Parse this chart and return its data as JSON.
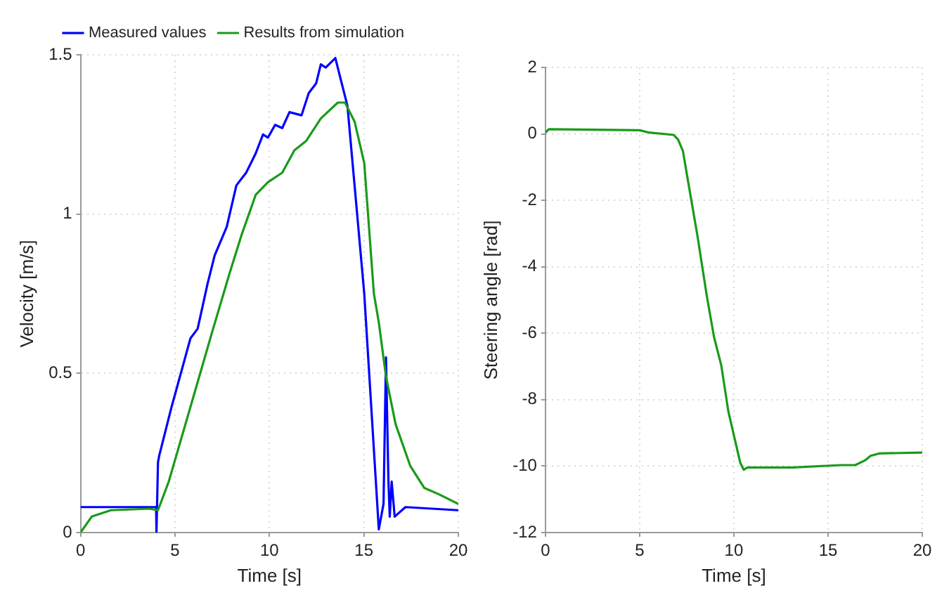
{
  "chart_data": [
    {
      "type": "line",
      "xlabel": "Time [s]",
      "ylabel": "Velocity [m/s]",
      "xlim": [
        0,
        20
      ],
      "ylim": [
        0,
        1.5
      ],
      "xticks": [
        0,
        5,
        10,
        15,
        20
      ],
      "yticks": [
        0,
        0.5,
        1,
        1.5
      ],
      "grid": true,
      "legend": "top",
      "line_style": "solid",
      "marker": "none",
      "series": [
        {
          "name": "Measured values",
          "color": "#0000ff",
          "x": [
            0,
            1,
            2,
            3,
            4,
            4.02,
            4.1,
            4.16,
            4.8,
            5.82,
            6.2,
            6.72,
            7.1,
            7.74,
            8.25,
            8.77,
            9.27,
            9.66,
            9.92,
            10.3,
            10.68,
            11.06,
            11.7,
            12.08,
            12.47,
            12.72,
            12.98,
            13.49,
            13.7,
            14.13,
            15.02,
            15.79,
            16.04,
            16.17,
            16.3,
            16.37,
            16.47,
            16.63,
            17.2,
            20
          ],
          "values": [
            0.08,
            0.08,
            0.08,
            0.08,
            0.08,
            0,
            0.22,
            0.24,
            0.39,
            0.61,
            0.64,
            0.78,
            0.87,
            0.96,
            1.09,
            1.13,
            1.19,
            1.25,
            1.24,
            1.28,
            1.27,
            1.32,
            1.31,
            1.38,
            1.41,
            1.47,
            1.46,
            1.49,
            1.44,
            1.34,
            0.75,
            0.01,
            0.09,
            0.55,
            0.16,
            0.05,
            0.16,
            0.05,
            0.08,
            0.07
          ]
        },
        {
          "name": "Results from simulation",
          "color": "#1a9a1a",
          "x": [
            0,
            0.59,
            1.6,
            3.65,
            4.1,
            4.67,
            5.7,
            6.97,
            7.87,
            8.5,
            9.27,
            9.92,
            10.68,
            11.32,
            11.95,
            12.72,
            13.62,
            14,
            14.51,
            15.02,
            15.53,
            15.79,
            16.17,
            16.68,
            17.45,
            18.2,
            18.98,
            20
          ],
          "values": [
            0,
            0.05,
            0.07,
            0.075,
            0.07,
            0.16,
            0.37,
            0.63,
            0.81,
            0.93,
            1.06,
            1.1,
            1.13,
            1.2,
            1.23,
            1.3,
            1.35,
            1.35,
            1.29,
            1.16,
            0.75,
            0.66,
            0.49,
            0.34,
            0.21,
            0.14,
            0.12,
            0.09
          ]
        }
      ]
    },
    {
      "type": "line",
      "xlabel": "Time [s]",
      "ylabel": "Steering angle [rad]",
      "xlim": [
        0,
        20
      ],
      "ylim": [
        -12,
        2
      ],
      "xticks": [
        0,
        5,
        10,
        15,
        20
      ],
      "yticks": [
        -12,
        -10,
        -8,
        -6,
        -4,
        -2,
        0,
        2
      ],
      "grid": true,
      "line_style": "solid",
      "marker": "none",
      "series": [
        {
          "color": "#1a9a1a",
          "x": [
            0,
            0.18,
            5,
            5.5,
            6.8,
            7.04,
            7.3,
            7.55,
            8.06,
            8.56,
            8.95,
            9.33,
            9.71,
            10.34,
            10.52,
            10.72,
            13.14,
            15.68,
            16.44,
            16.95,
            17.26,
            17.71,
            20
          ],
          "values": [
            0.04,
            0.14,
            0.11,
            0.04,
            -0.03,
            -0.17,
            -0.52,
            -1.36,
            -3.04,
            -4.86,
            -6.12,
            -6.96,
            -8.36,
            -9.9,
            -10.11,
            -10.04,
            -10.04,
            -9.97,
            -9.97,
            -9.83,
            -9.69,
            -9.62,
            -9.59
          ]
        }
      ]
    }
  ]
}
